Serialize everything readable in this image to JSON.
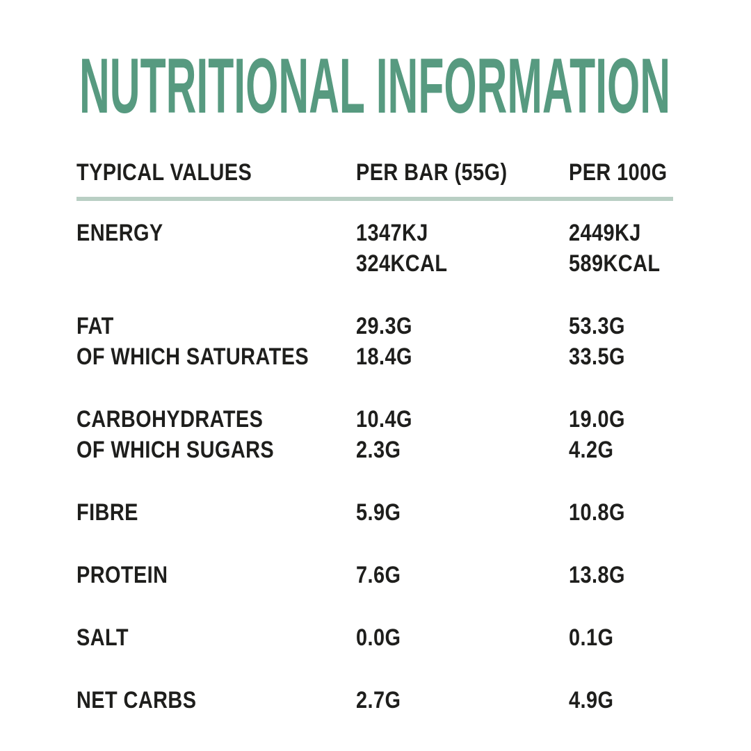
{
  "page": {
    "background_color": "#ffffff",
    "text_color": "#1e1e1c"
  },
  "title": {
    "text": "NUTRITIONAL INFORMATION",
    "color": "#579a80"
  },
  "table": {
    "divider_color": "#b9cfc4",
    "headers": {
      "col1": "TYPICAL VALUES",
      "col2": "PER BAR (55G)",
      "col3": "PER 100G"
    },
    "rows": [
      {
        "label": "ENERGY",
        "per_bar": "1347KJ",
        "per_100g": "2449KJ"
      },
      {
        "label": "",
        "per_bar": "324KCAL",
        "per_100g": "589KCAL"
      },
      {
        "label": "FAT",
        "per_bar": "29.3G",
        "per_100g": "53.3G"
      },
      {
        "label": "OF WHICH SATURATES",
        "per_bar": "18.4G",
        "per_100g": "33.5G"
      },
      {
        "label": "CARBOHYDRATES",
        "per_bar": "10.4G",
        "per_100g": "19.0G"
      },
      {
        "label": "OF WHICH SUGARS",
        "per_bar": "2.3G",
        "per_100g": "4.2G"
      },
      {
        "label": "FIBRE",
        "per_bar": "5.9G",
        "per_100g": "10.8G"
      },
      {
        "label": "PROTEIN",
        "per_bar": "7.6G",
        "per_100g": "13.8G"
      },
      {
        "label": "SALT",
        "per_bar": "0.0G",
        "per_100g": "0.1G"
      },
      {
        "label": "NET CARBS",
        "per_bar": "2.7G",
        "per_100g": "4.9G"
      }
    ]
  }
}
